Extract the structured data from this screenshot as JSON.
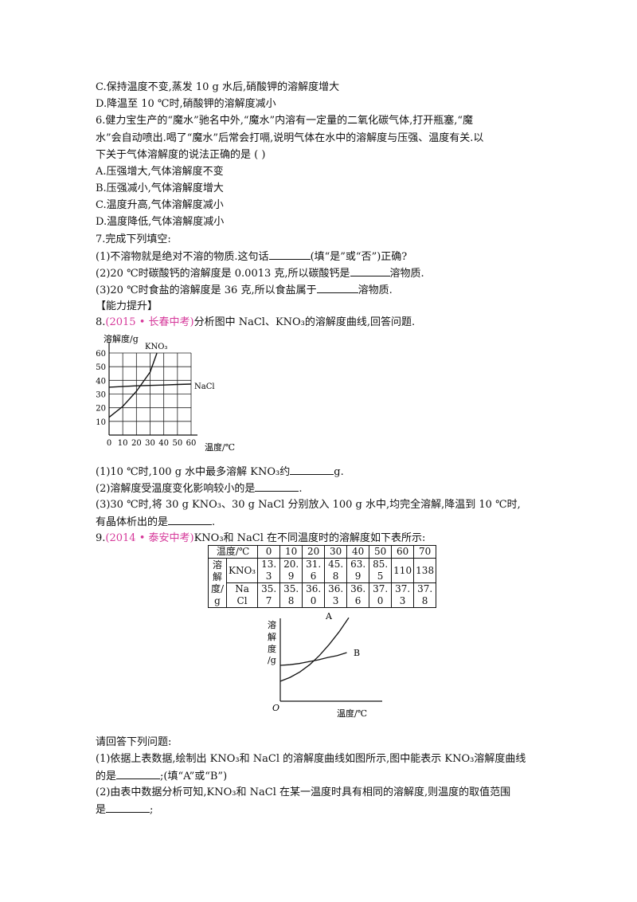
{
  "q5": {
    "optC": "C.保持温度不变,蒸发 10  g 水后,硝酸钾的溶解度增大",
    "optD": "D.降温至 10  ℃时,硝酸钾的溶解度减小"
  },
  "q6": {
    "line1": "6.健力宝生产的“魔水”驰名中外,“魔水”内溶有一定量的二氧化碳气体,打开瓶塞,“魔",
    "line2": "水”会自动喷出.喝了“魔水”后常会打嗝,说明气体在水中的溶解度与压强、温度有关.以",
    "line3": "下关于气体溶解度的说法正确的是   (       )",
    "options": [
      "A.压强增大,气体溶解度不变",
      "B.压强减小,气体溶解度增大",
      "C.温度升高,气体溶解度减小",
      "D.温度降低,气体溶解度减小"
    ]
  },
  "q7": {
    "title": "7.完成下列填空:",
    "s1a": "(1)不溶物就是绝对不溶的物质.这句话",
    "s1b": "(填“是”或“否”)正确?",
    "s2a": "(2)20  ℃时碳酸钙的溶解度是 0.0013 克,所以碳酸钙是",
    "s2b": "溶物质.",
    "s3a": "(3)20  ℃时食盐的溶解度是 36 克,所以食盐属于",
    "s3b": "溶物质."
  },
  "section": "【能力提升】",
  "q8": {
    "num": "8.",
    "src": "(2015 • 长春中考)",
    "text": "分析图中 NaCl、KNO₃的溶解度曲线,回答问题.",
    "s1a": "(1)10  ℃时,100  g 水中最多溶解 KNO₃约",
    "s1b": "g.",
    "s2a": "(2)溶解度受温度变化影响较小的是",
    "s2b": ".",
    "s3a": "(3)30  ℃时,将 30  g  KNO₃、30  g  NaCl 分别放入 100  g  水中,均完全溶解,降温到 10  ℃时,",
    "s3b": "有晶体析出的是",
    "s3c": "."
  },
  "chart_data": [
    {
      "type": "line",
      "title": "",
      "xlabel": "温度/℃",
      "ylabel": "溶解度/g",
      "xlim": [
        0,
        60
      ],
      "ylim": [
        0,
        60
      ],
      "x_ticks": [
        "0",
        "10",
        "20",
        "30",
        "40",
        "50",
        "60"
      ],
      "y_ticks": [
        "10",
        "20",
        "30",
        "40",
        "50",
        "60"
      ],
      "grid": true,
      "series": [
        {
          "name": "KNO₃",
          "x": [
            0,
            10,
            20,
            30,
            35
          ],
          "y": [
            13,
            21,
            32,
            46,
            60
          ]
        },
        {
          "name": "NaCl",
          "x": [
            0,
            10,
            20,
            30,
            40,
            50,
            60
          ],
          "y": [
            35,
            35.5,
            36,
            36.3,
            36.6,
            37,
            37.3
          ]
        }
      ]
    },
    {
      "type": "line",
      "title": "",
      "xlabel": "温度/℃",
      "ylabel": "溶解度/g",
      "origin": "O",
      "grid": false,
      "series": [
        {
          "name": "A",
          "x": [
            0,
            10,
            20,
            30,
            40,
            50,
            60,
            70
          ],
          "y": [
            13.3,
            20.9,
            31.6,
            45.8,
            63.9,
            85.5,
            110,
            138
          ]
        },
        {
          "name": "B",
          "x": [
            0,
            10,
            20,
            30,
            40,
            50,
            60,
            70
          ],
          "y": [
            35.7,
            35.8,
            36.0,
            36.3,
            36.6,
            37.0,
            37.3,
            37.8
          ]
        }
      ]
    }
  ],
  "q9": {
    "num": "9.",
    "src": "(2014 • 泰安中考)",
    "text": "KNO₃和 NaCl 在不同温度时的溶解度如下表所示:",
    "table": {
      "temp_header": "温度/℃",
      "temps": [
        "0",
        "10",
        "20",
        "30",
        "40",
        "50",
        "60",
        "70"
      ],
      "row_label": [
        "溶",
        "解",
        "度/",
        "g"
      ],
      "kno3_label": "KNO₃",
      "nacl_label": "NaCl",
      "kno3": [
        "13.3",
        "20.9",
        "31.6",
        "45.8",
        "63.9",
        "85.5",
        "110",
        "138"
      ],
      "nacl": [
        "35.7",
        "35.8",
        "36.0",
        "36.3",
        "36.6",
        "37.0",
        "37.3",
        "37.8"
      ]
    },
    "ask": "请回答下列问题:",
    "s1a": "(1)依据上表数据,绘制出 KNO₃和 NaCl 的溶解度曲线如图所示,图中能表示 KNO₃溶解度曲线",
    "s1b": "的是",
    "s1c": ";(填“A”或“B”)",
    "s2a": "(2)由表中数据分析可知,KNO₃和 NaCl 在某一温度时具有相同的溶解度,则温度的取值范围",
    "s2b": "是",
    "s2c": ";"
  }
}
